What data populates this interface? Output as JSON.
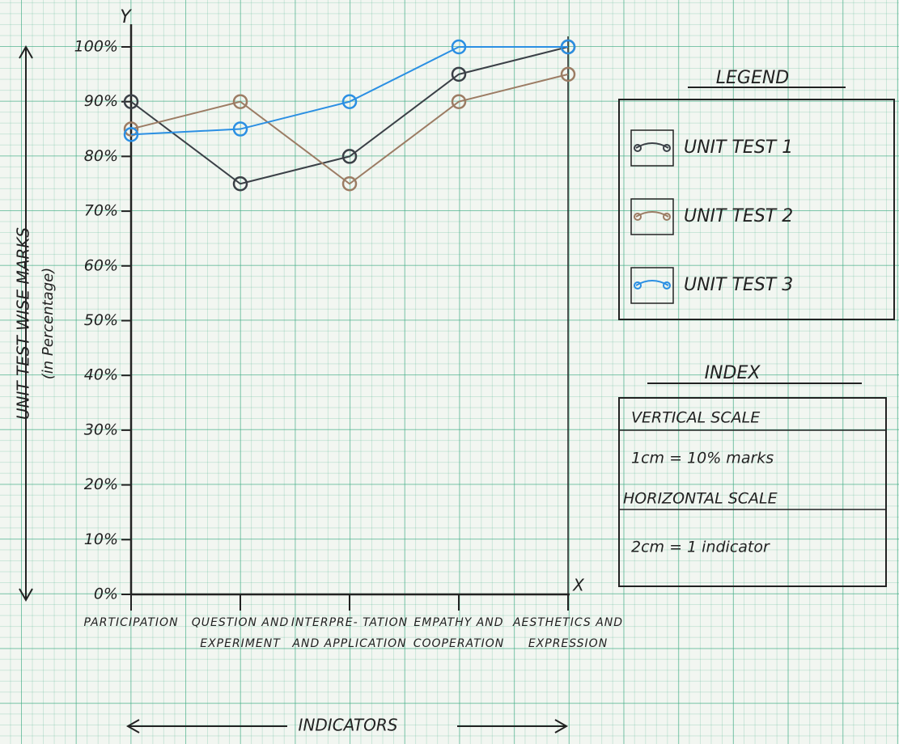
{
  "chart_data": {
    "type": "line",
    "y_axis_letter": "Y",
    "x_axis_letter": "X",
    "y_label": "UNIT TEST WISE MARKS",
    "y_label_note": "(in Percentage)",
    "x_label": "INDICATORS",
    "categories": [
      "PARTICIPATION",
      "QUESTION AND EXPERIMENT",
      "INTERPRE- TATION AND APPLICATION",
      "EMPATHY AND COOPERATION",
      "AESTHETICS AND EXPRESSION"
    ],
    "series": [
      {
        "name": "UNIT TEST 1",
        "color": "#3b4047",
        "values": [
          90,
          75,
          80,
          95,
          100
        ]
      },
      {
        "name": "UNIT TEST 2",
        "color": "#9c7c64",
        "values": [
          85,
          90,
          75,
          90,
          95
        ]
      },
      {
        "name": "UNIT TEST 3",
        "color": "#2b8fe3",
        "values": [
          84,
          85,
          90,
          100,
          100
        ]
      }
    ],
    "ylim": [
      0,
      100
    ],
    "yticks": [
      {
        "value": 0,
        "label": "0%"
      },
      {
        "value": 10,
        "label": "10%"
      },
      {
        "value": 20,
        "label": "20%"
      },
      {
        "value": 30,
        "label": "30%"
      },
      {
        "value": 40,
        "label": "40%"
      },
      {
        "value": 50,
        "label": "50%"
      },
      {
        "value": 60,
        "label": "60%"
      },
      {
        "value": 70,
        "label": "70%"
      },
      {
        "value": 80,
        "label": "80%"
      },
      {
        "value": 90,
        "label": "90%"
      },
      {
        "value": 100,
        "label": "100%"
      }
    ],
    "legend_title": "LEGEND",
    "index": {
      "title": "INDEX",
      "lines": [
        "VERTICAL SCALE",
        "1cm = 10% marks",
        "HORIZONTAL SCALE",
        "2cm = 1 indicator"
      ]
    }
  }
}
